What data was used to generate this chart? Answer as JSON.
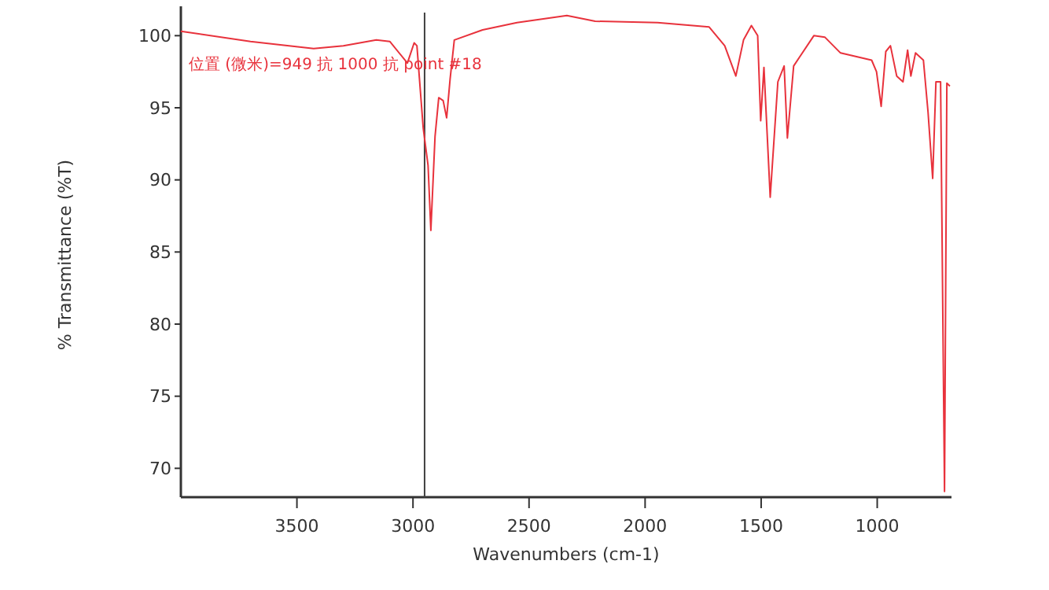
{
  "chart_data": {
    "type": "line",
    "xlabel": "Wavenumbers (cm-1)",
    "ylabel": "% Transmittance (%T)",
    "annotations": [
      "位置 (微米)=949 抗 1000 抗 point #18"
    ],
    "x": [
      4000,
      3700,
      3428,
      3300,
      3158,
      3100,
      3024,
      2995,
      2983,
      2956,
      2935,
      2923,
      2905,
      2889,
      2870,
      2855,
      2840,
      2822,
      2700,
      2552,
      2337,
      2215,
      1946,
      1724,
      1657,
      1609,
      1576,
      1542,
      1515,
      1502,
      1488,
      1461,
      1428,
      1401,
      1387,
      1360,
      1273,
      1226,
      1158,
      1024,
      1003,
      983,
      963,
      943,
      916,
      889,
      869,
      855,
      835,
      801,
      781,
      761,
      747,
      727,
      710,
      700,
      687
    ],
    "xlim": [
      4000,
      680
    ],
    "xticks": [
      3500,
      3000,
      2500,
      2000,
      1500,
      1000
    ],
    "ylim": [
      68,
      101.6
    ],
    "yticks": [
      70,
      75,
      80,
      85,
      90,
      95,
      100
    ],
    "series": [
      {
        "color": "#e8323c",
        "values": [
          100.3,
          99.6,
          99.1,
          99.3,
          99.7,
          99.6,
          98.1,
          99.5,
          99.3,
          93.6,
          91,
          86.5,
          93,
          95.7,
          95.5,
          94.3,
          97,
          99.7,
          100.4,
          100.9,
          101.4,
          101,
          100.9,
          100.6,
          99.3,
          97.2,
          99.7,
          100.7,
          100,
          94.1,
          97.8,
          88.8,
          96.8,
          97.9,
          92.9,
          97.9,
          100,
          99.9,
          98.8,
          98.3,
          97.5,
          95.1,
          98.9,
          99.3,
          97.2,
          96.8,
          99,
          97.2,
          98.8,
          98.3,
          94.7,
          90.1,
          96.8,
          96.8,
          68.4,
          96.7,
          96.5
        ]
      }
    ],
    "ref_lines": [
      {
        "axis": "x",
        "value": 2950,
        "color": "#404040"
      }
    ],
    "grid": false,
    "marker": "none",
    "line_style": "solid"
  }
}
